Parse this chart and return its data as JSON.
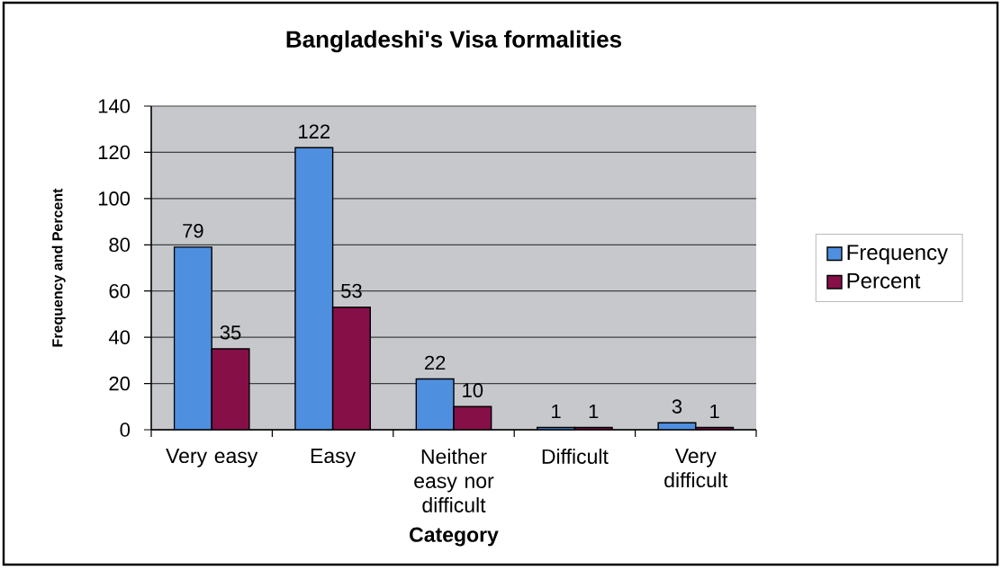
{
  "chart_data": {
    "type": "bar",
    "title": "Bangladeshi's Visa formalities",
    "xlabel": "Category",
    "ylabel": "Frequency and Percent",
    "categories": [
      "Very easy",
      "Easy",
      "Neither easy nor difficult",
      "Difficult",
      "Very difficult"
    ],
    "series": [
      {
        "name": "Frequency",
        "color": "#4f8fdf",
        "values": [
          79,
          122,
          22,
          1,
          3
        ]
      },
      {
        "name": "Percent",
        "color": "#860f48",
        "values": [
          35,
          53,
          10,
          1,
          1
        ]
      }
    ],
    "ylim": [
      0,
      140
    ],
    "yticks": [
      0,
      20,
      40,
      60,
      80,
      100,
      120,
      140
    ],
    "grid": "y",
    "legend": "right",
    "data_labels": true
  }
}
